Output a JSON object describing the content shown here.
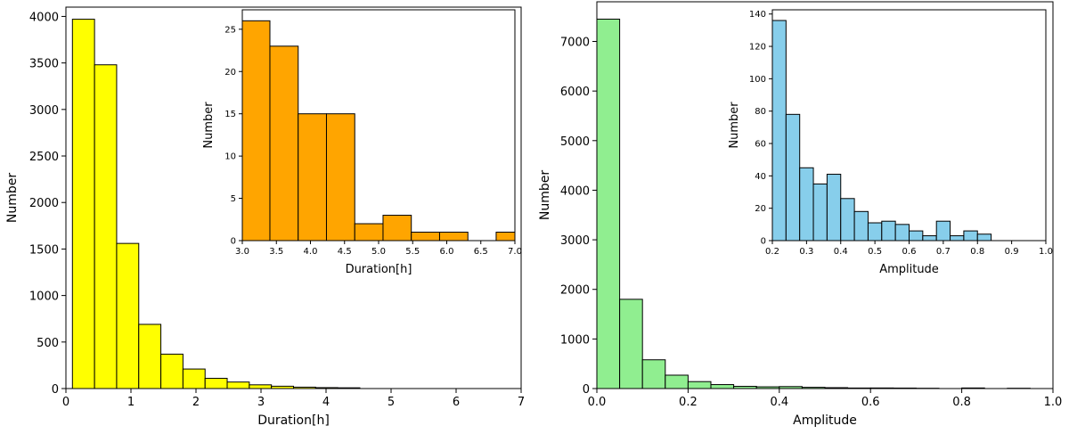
{
  "chart_data": [
    {
      "id": "duration-main",
      "type": "bar",
      "title": "",
      "xlabel": "Duration[h]",
      "ylabel": "Number",
      "xlim": [
        0,
        7
      ],
      "ylim": [
        0,
        4100
      ],
      "xticks": [
        0,
        1,
        2,
        3,
        4,
        5,
        6,
        7
      ],
      "xtick_labels": [
        "0",
        "1",
        "2",
        "3",
        "4",
        "5",
        "6",
        "7"
      ],
      "yticks": [
        0,
        500,
        1000,
        1500,
        2000,
        2500,
        3000,
        3500,
        4000
      ],
      "ytick_labels": [
        "0",
        "500",
        "1000",
        "1500",
        "2000",
        "2500",
        "3000",
        "3500",
        "4000"
      ],
      "color": "#ffff00",
      "bins": [
        {
          "from": 0.1,
          "to": 0.44,
          "value": 3970
        },
        {
          "from": 0.44,
          "to": 0.78,
          "value": 3480
        },
        {
          "from": 0.78,
          "to": 1.12,
          "value": 1560
        },
        {
          "from": 1.12,
          "to": 1.46,
          "value": 690
        },
        {
          "from": 1.46,
          "to": 1.8,
          "value": 370
        },
        {
          "from": 1.8,
          "to": 2.14,
          "value": 210
        },
        {
          "from": 2.14,
          "to": 2.48,
          "value": 110
        },
        {
          "from": 2.48,
          "to": 2.82,
          "value": 70
        },
        {
          "from": 2.82,
          "to": 3.16,
          "value": 40
        },
        {
          "from": 3.16,
          "to": 3.5,
          "value": 25
        },
        {
          "from": 3.5,
          "to": 3.84,
          "value": 15
        },
        {
          "from": 3.84,
          "to": 4.18,
          "value": 10
        },
        {
          "from": 4.18,
          "to": 4.52,
          "value": 8
        }
      ]
    },
    {
      "id": "duration-inset",
      "type": "bar",
      "title": "",
      "xlabel": "Duration[h]",
      "ylabel": "Number",
      "xlim": [
        3.0,
        7.0
      ],
      "ylim": [
        0,
        27.3
      ],
      "xticks": [
        3.0,
        3.5,
        4.0,
        4.5,
        5.0,
        5.5,
        6.0,
        6.5,
        7.0
      ],
      "xtick_labels": [
        "3.0",
        "3.5",
        "4.0",
        "4.5",
        "5.0",
        "5.5",
        "6.0",
        "6.5",
        "7.0"
      ],
      "yticks": [
        0,
        5,
        10,
        15,
        20,
        25
      ],
      "ytick_labels": [
        "0",
        "5",
        "10",
        "15",
        "20",
        "25"
      ],
      "color": "#ffa500",
      "bins": [
        {
          "from": 2.99,
          "to": 3.405,
          "value": 26
        },
        {
          "from": 3.405,
          "to": 3.82,
          "value": 23
        },
        {
          "from": 3.82,
          "to": 4.235,
          "value": 15
        },
        {
          "from": 4.235,
          "to": 4.65,
          "value": 15
        },
        {
          "from": 4.65,
          "to": 5.065,
          "value": 2
        },
        {
          "from": 5.065,
          "to": 5.48,
          "value": 3
        },
        {
          "from": 5.48,
          "to": 5.895,
          "value": 1
        },
        {
          "from": 5.895,
          "to": 6.31,
          "value": 1
        },
        {
          "from": 6.31,
          "to": 6.725,
          "value": 0
        },
        {
          "from": 6.725,
          "to": 7.14,
          "value": 1
        }
      ]
    },
    {
      "id": "amplitude-main",
      "type": "bar",
      "title": "",
      "xlabel": "Amplitude",
      "ylabel": "Number",
      "xlim": [
        0.0,
        1.0
      ],
      "ylim": [
        0,
        7800
      ],
      "xticks": [
        0.0,
        0.2,
        0.4,
        0.6,
        0.8,
        1.0
      ],
      "xtick_labels": [
        "0.0",
        "0.2",
        "0.4",
        "0.6",
        "0.8",
        "1.0"
      ],
      "yticks": [
        0,
        1000,
        2000,
        3000,
        4000,
        5000,
        6000,
        7000
      ],
      "ytick_labels": [
        "0",
        "1000",
        "2000",
        "3000",
        "4000",
        "5000",
        "6000",
        "7000"
      ],
      "color": "#90ee90",
      "bins": [
        {
          "from": 0.0,
          "to": 0.05,
          "value": 7450
        },
        {
          "from": 0.05,
          "to": 0.1,
          "value": 1800
        },
        {
          "from": 0.1,
          "to": 0.15,
          "value": 580
        },
        {
          "from": 0.15,
          "to": 0.2,
          "value": 270
        },
        {
          "from": 0.2,
          "to": 0.25,
          "value": 140
        },
        {
          "from": 0.25,
          "to": 0.3,
          "value": 80
        },
        {
          "from": 0.3,
          "to": 0.35,
          "value": 45
        },
        {
          "from": 0.35,
          "to": 0.4,
          "value": 35
        },
        {
          "from": 0.4,
          "to": 0.45,
          "value": 40
        },
        {
          "from": 0.45,
          "to": 0.5,
          "value": 25
        },
        {
          "from": 0.5,
          "to": 0.55,
          "value": 18
        },
        {
          "from": 0.55,
          "to": 0.6,
          "value": 11
        },
        {
          "from": 0.6,
          "to": 0.65,
          "value": 12
        },
        {
          "from": 0.65,
          "to": 0.7,
          "value": 10
        },
        {
          "from": 0.7,
          "to": 0.75,
          "value": 6
        },
        {
          "from": 0.75,
          "to": 0.8,
          "value": 0
        },
        {
          "from": 0.8,
          "to": 0.85,
          "value": 12
        },
        {
          "from": 0.85,
          "to": 0.9,
          "value": 0
        },
        {
          "from": 0.9,
          "to": 0.95,
          "value": 6
        },
        {
          "from": 0.95,
          "to": 1.0,
          "value": 0
        }
      ]
    },
    {
      "id": "amplitude-inset",
      "type": "bar",
      "title": "",
      "xlabel": "Amplitude",
      "ylabel": "Number",
      "xlim": [
        0.2,
        1.0
      ],
      "ylim": [
        0,
        142.6
      ],
      "xticks": [
        0.2,
        0.3,
        0.4,
        0.5,
        0.6,
        0.7,
        0.8,
        0.9,
        1.0
      ],
      "xtick_labels": [
        "0.2",
        "0.3",
        "0.4",
        "0.5",
        "0.6",
        "0.7",
        "0.8",
        "0.9",
        "1.0"
      ],
      "yticks": [
        0,
        20,
        40,
        60,
        80,
        100,
        120,
        140
      ],
      "ytick_labels": [
        "0",
        "20",
        "40",
        "60",
        "80",
        "100",
        "120",
        "140"
      ],
      "color": "#87ceeb",
      "bins": [
        {
          "from": 0.2,
          "to": 0.24,
          "value": 136
        },
        {
          "from": 0.24,
          "to": 0.28,
          "value": 78
        },
        {
          "from": 0.28,
          "to": 0.32,
          "value": 45
        },
        {
          "from": 0.32,
          "to": 0.36,
          "value": 35
        },
        {
          "from": 0.36,
          "to": 0.4,
          "value": 41
        },
        {
          "from": 0.4,
          "to": 0.44,
          "value": 26
        },
        {
          "from": 0.44,
          "to": 0.48,
          "value": 18
        },
        {
          "from": 0.48,
          "to": 0.52,
          "value": 11
        },
        {
          "from": 0.52,
          "to": 0.56,
          "value": 12
        },
        {
          "from": 0.56,
          "to": 0.6,
          "value": 10
        },
        {
          "from": 0.6,
          "to": 0.64,
          "value": 6
        },
        {
          "from": 0.64,
          "to": 0.68,
          "value": 3
        },
        {
          "from": 0.68,
          "to": 0.72,
          "value": 12
        },
        {
          "from": 0.72,
          "to": 0.76,
          "value": 3
        },
        {
          "from": 0.76,
          "to": 0.8,
          "value": 6
        },
        {
          "from": 0.8,
          "to": 0.84,
          "value": 4
        }
      ]
    }
  ]
}
